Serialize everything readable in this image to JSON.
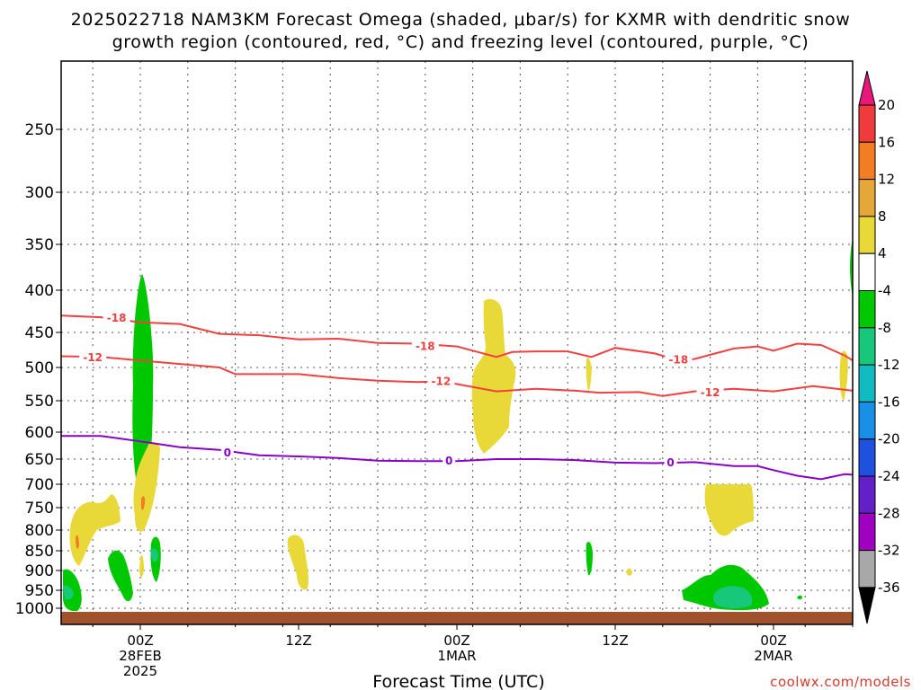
{
  "chart_data": {
    "type": "heatmap",
    "title_lines": [
      "2025022718 NAM3KM Forecast Omega (shaded, μbar/s) for KXMR with dendritic snow",
      "growth region (contoured, red, °C) and freezing level (contoured, purple, °C)"
    ],
    "xlabel": "Forecast Time (UTC)",
    "credit": "coolwx.com/models",
    "y_axis": {
      "unit": "hPa",
      "inverted": true,
      "ticks": [
        250,
        300,
        350,
        400,
        450,
        500,
        550,
        600,
        650,
        700,
        750,
        800,
        850,
        900,
        950,
        1000
      ]
    },
    "x_axis": {
      "range_hours": [
        -10,
        90
      ],
      "ticks": [
        {
          "hour": 0,
          "line1": "00Z",
          "line2": "28FEB",
          "line3": "2025"
        },
        {
          "hour": 20,
          "line1": "12Z",
          "line2": "",
          "line3": ""
        },
        {
          "hour": 40,
          "line1": "00Z",
          "line2": "1MAR",
          "line3": ""
        },
        {
          "hour": 60,
          "line1": "12Z",
          "line2": "",
          "line3": ""
        },
        {
          "hour": 80,
          "line1": "00Z",
          "line2": "2MAR",
          "line3": ""
        }
      ]
    },
    "grid": true,
    "colorbar": {
      "labels": [
        "20",
        "16",
        "12",
        "8",
        "4",
        "-4",
        "-8",
        "-12",
        "-16",
        "-20",
        "-24",
        "-28",
        "-32",
        "-36"
      ],
      "colors": [
        "#e8187a",
        "#ef3b3b",
        "#f47d22",
        "#e5a73a",
        "#e8d838",
        "#ffffff",
        "#00c800",
        "#18c87a",
        "#10bcc0",
        "#1890e8",
        "#2050e0",
        "#6420c8",
        "#a000c0",
        "#a8a8a8",
        "#000000"
      ]
    },
    "contours": [
      {
        "name": "-18",
        "color": "#f04040",
        "points": [
          [
            -10,
            430
          ],
          [
            -5,
            432
          ],
          [
            0,
            438
          ],
          [
            5,
            440
          ],
          [
            10,
            452
          ],
          [
            15,
            454
          ],
          [
            20,
            460
          ],
          [
            25,
            459
          ],
          [
            30,
            465
          ],
          [
            35,
            466
          ],
          [
            40,
            470
          ],
          [
            45,
            485
          ],
          [
            47,
            478
          ],
          [
            50,
            477
          ],
          [
            54,
            477
          ],
          [
            57,
            485
          ],
          [
            60,
            472
          ],
          [
            65,
            480
          ],
          [
            68,
            490
          ],
          [
            70,
            488
          ],
          [
            75,
            473
          ],
          [
            78,
            470
          ],
          [
            80,
            476
          ],
          [
            83,
            466
          ],
          [
            86,
            468
          ],
          [
            89,
            483
          ],
          [
            90,
            490
          ]
        ],
        "labels": [
          [
            -3,
            433
          ],
          [
            36,
            470
          ],
          [
            68,
            489
          ]
        ]
      },
      {
        "name": "-12",
        "color": "#f04040",
        "points": [
          [
            -10,
            484
          ],
          [
            -5,
            485
          ],
          [
            0,
            490
          ],
          [
            5,
            495
          ],
          [
            10,
            500
          ],
          [
            12,
            510
          ],
          [
            20,
            510
          ],
          [
            25,
            516
          ],
          [
            30,
            520
          ],
          [
            35,
            522
          ],
          [
            38,
            521
          ],
          [
            40,
            525
          ],
          [
            45,
            536
          ],
          [
            50,
            532
          ],
          [
            55,
            535
          ],
          [
            58,
            538
          ],
          [
            63,
            537
          ],
          [
            66,
            543
          ],
          [
            70,
            536
          ],
          [
            75,
            532
          ],
          [
            80,
            536
          ],
          [
            85,
            528
          ],
          [
            88,
            532
          ],
          [
            90,
            535
          ]
        ],
        "labels": [
          [
            -6,
            486
          ],
          [
            38,
            521
          ],
          [
            72,
            538
          ]
        ]
      },
      {
        "name": "0",
        "color": "#8a00c8",
        "points": [
          [
            -10,
            607
          ],
          [
            -5,
            607
          ],
          [
            0,
            617
          ],
          [
            5,
            628
          ],
          [
            10,
            633
          ],
          [
            15,
            643
          ],
          [
            20,
            645
          ],
          [
            25,
            648
          ],
          [
            30,
            653
          ],
          [
            35,
            654
          ],
          [
            40,
            654
          ],
          [
            45,
            650
          ],
          [
            50,
            650
          ],
          [
            55,
            652
          ],
          [
            60,
            657
          ],
          [
            65,
            658
          ],
          [
            70,
            656
          ],
          [
            75,
            664
          ],
          [
            78,
            664
          ],
          [
            80,
            672
          ],
          [
            83,
            683
          ],
          [
            86,
            690
          ],
          [
            89,
            680
          ],
          [
            90,
            681
          ]
        ],
        "labels": [
          [
            11,
            638
          ],
          [
            39,
            654
          ],
          [
            67,
            657
          ]
        ]
      }
    ],
    "shaded_regions": [
      {
        "name": "green-column-early",
        "value": "-4 to -8",
        "color": "#00c800"
      },
      {
        "name": "yellow-low-early",
        "value": "4 to 8",
        "color": "#e8d838"
      },
      {
        "name": "yellow-mid-1mar",
        "value": "4 to 8",
        "color": "#e8d838"
      },
      {
        "name": "yellow-low-2mar",
        "value": "4 to 8",
        "color": "#e8d838"
      },
      {
        "name": "green-low-2mar",
        "value": "-4 to -8",
        "color": "#00c800"
      },
      {
        "name": "teal-core-2mar",
        "value": "-8 to -12",
        "color": "#18c87a"
      }
    ]
  }
}
